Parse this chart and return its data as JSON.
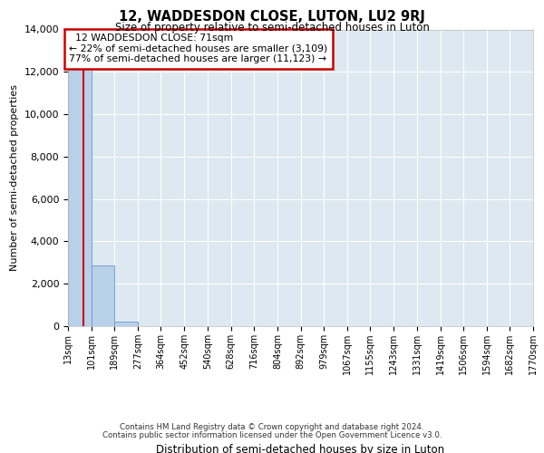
{
  "title": "12, WADDESDON CLOSE, LUTON, LU2 9RJ",
  "subtitle": "Size of property relative to semi-detached houses in Luton",
  "xlabel": "Distribution of semi-detached houses by size in Luton",
  "ylabel": "Number of semi-detached properties",
  "property_size": 71,
  "property_label": "12 WADDESDON CLOSE: 71sqm",
  "pct_smaller": 22,
  "count_smaller": 3109,
  "pct_larger": 77,
  "count_larger": 11123,
  "bin_edges": [
    13,
    101,
    189,
    277,
    364,
    452,
    540,
    628,
    716,
    804,
    892,
    979,
    1067,
    1155,
    1243,
    1331,
    1419,
    1506,
    1594,
    1682,
    1770
  ],
  "bin_labels": [
    "13sqm",
    "101sqm",
    "189sqm",
    "277sqm",
    "364sqm",
    "452sqm",
    "540sqm",
    "628sqm",
    "716sqm",
    "804sqm",
    "892sqm",
    "979sqm",
    "1067sqm",
    "1155sqm",
    "1243sqm",
    "1331sqm",
    "1419sqm",
    "1506sqm",
    "1594sqm",
    "1682sqm",
    "1770sqm"
  ],
  "bar_values": [
    13232,
    2850,
    210,
    10,
    2,
    1,
    0,
    0,
    0,
    0,
    0,
    0,
    0,
    0,
    0,
    0,
    0,
    0,
    0,
    0
  ],
  "bar_color": "#b8d0e8",
  "bar_edgecolor": "#6699cc",
  "marker_color": "#cc0000",
  "annotation_box_edgecolor": "#cc0000",
  "background_color": "#dde8f0",
  "ylim": [
    0,
    14000
  ],
  "yticks": [
    0,
    2000,
    4000,
    6000,
    8000,
    10000,
    12000,
    14000
  ],
  "footer_line1": "Contains HM Land Registry data © Crown copyright and database right 2024.",
  "footer_line2": "Contains public sector information licensed under the Open Government Licence v3.0."
}
